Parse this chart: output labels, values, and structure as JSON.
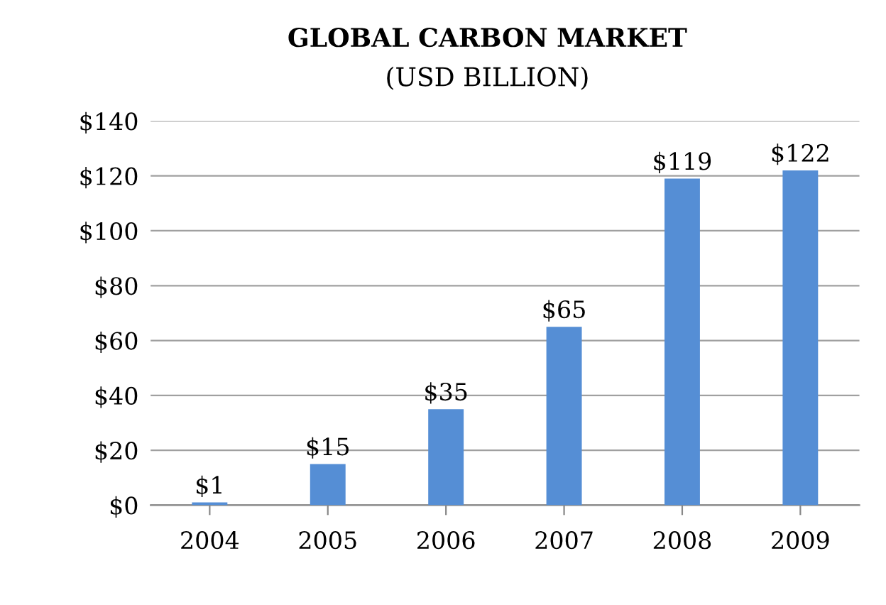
{
  "chart_data": {
    "type": "bar",
    "title": "GLOBAL CARBON MARKET",
    "subtitle": "(USD BILLION)",
    "categories": [
      "2004",
      "2005",
      "2006",
      "2007",
      "2008",
      "2009"
    ],
    "values": [
      1,
      15,
      35,
      65,
      119,
      122
    ],
    "value_labels": [
      "$1",
      "$15",
      "$35",
      "$65",
      "$119",
      "$122"
    ],
    "color": "#558ed5",
    "ylim": [
      0,
      140
    ],
    "yticks": [
      {
        "value": 0,
        "label": "$0"
      },
      {
        "value": 20,
        "label": "$20"
      },
      {
        "value": 40,
        "label": "$40"
      },
      {
        "value": 60,
        "label": "$60"
      },
      {
        "value": 80,
        "label": "$80"
      },
      {
        "value": 100,
        "label": "$100"
      },
      {
        "value": 120,
        "label": "$120"
      },
      {
        "value": 140,
        "label": "$140"
      }
    ],
    "grid": "y"
  }
}
